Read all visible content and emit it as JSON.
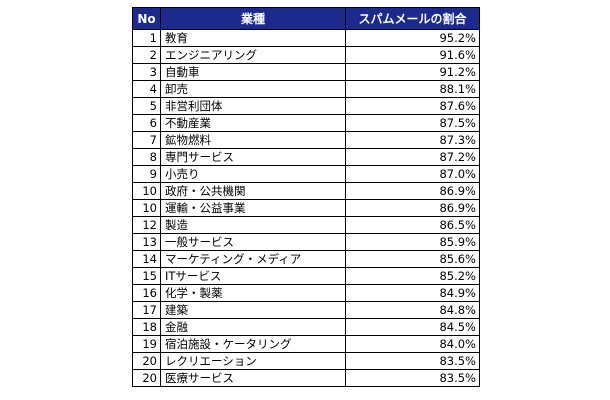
{
  "header": {
    "no": "No",
    "industry": "業種",
    "rate": "スパムメールの割合"
  },
  "rows": [
    {
      "no": "1",
      "industry": "教育",
      "rate": "95.2%"
    },
    {
      "no": "2",
      "industry": "エンジニアリング",
      "rate": "91.6%"
    },
    {
      "no": "3",
      "industry": "自動車",
      "rate": "91.2%"
    },
    {
      "no": "4",
      "industry": "卸売",
      "rate": "88.1%"
    },
    {
      "no": "5",
      "industry": "非営利団体",
      "rate": "87.6%"
    },
    {
      "no": "6",
      "industry": "不動産業",
      "rate": "87.5%"
    },
    {
      "no": "7",
      "industry": "鉱物燃料",
      "rate": "87.3%"
    },
    {
      "no": "8",
      "industry": "専門サービス",
      "rate": "87.2%"
    },
    {
      "no": "9",
      "industry": "小売り",
      "rate": "87.0%"
    },
    {
      "no": "10",
      "industry": "政府・公共機関",
      "rate": "86.9%"
    },
    {
      "no": "10",
      "industry": "運輸・公益事業",
      "rate": "86.9%"
    },
    {
      "no": "12",
      "industry": "製造",
      "rate": "86.5%"
    },
    {
      "no": "13",
      "industry": "一般サービス",
      "rate": "85.9%"
    },
    {
      "no": "14",
      "industry": "マーケティング・メディア",
      "rate": "85.6%"
    },
    {
      "no": "15",
      "industry": "ITサービス",
      "rate": "85.2%"
    },
    {
      "no": "16",
      "industry": "化学・製薬",
      "rate": "84.9%"
    },
    {
      "no": "17",
      "industry": "建築",
      "rate": "84.8%"
    },
    {
      "no": "18",
      "industry": "金融",
      "rate": "84.5%"
    },
    {
      "no": "19",
      "industry": "宿泊施設・ケータリング",
      "rate": "84.0%"
    },
    {
      "no": "20",
      "industry": "レクリエーション",
      "rate": "83.5%"
    },
    {
      "no": "20",
      "industry": "医療サービス",
      "rate": "83.5%"
    }
  ],
  "colors": {
    "header_bg": "#1b2a8c",
    "header_text": "#ffffff",
    "border": "#000000"
  }
}
